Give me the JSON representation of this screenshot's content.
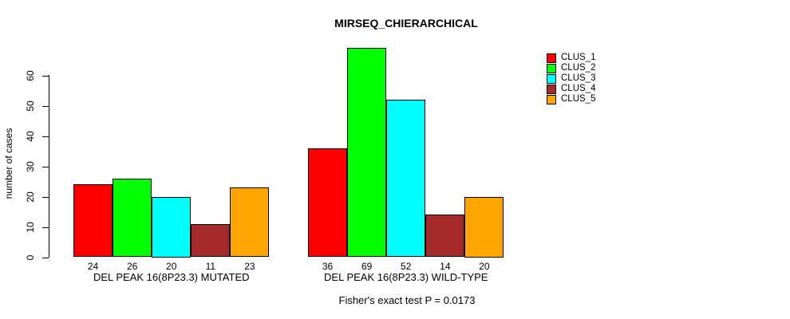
{
  "chart_data": {
    "type": "bar",
    "title": "MIRSEQ_CHIERARCHICAL",
    "ylabel": "number of cases",
    "xlabel": "",
    "footer": "Fisher's exact test P = 0.0173",
    "categories": [
      "DEL PEAK 16(8P23.3) MUTATED",
      "DEL PEAK 16(8P23.3) WILD-TYPE"
    ],
    "series": [
      {
        "name": "CLUS_1",
        "color": "#FF0000",
        "values": [
          24,
          36
        ]
      },
      {
        "name": "CLUS_2",
        "color": "#00FF00",
        "values": [
          26,
          69
        ]
      },
      {
        "name": "CLUS_3",
        "color": "#00FFFF",
        "values": [
          20,
          52
        ]
      },
      {
        "name": "CLUS_4",
        "color": "#A52A2A",
        "values": [
          11,
          14
        ]
      },
      {
        "name": "CLUS_5",
        "color": "#FFA500",
        "values": [
          23,
          20
        ]
      }
    ],
    "bar_value_labels": {
      "DEL PEAK 16(8P23.3) MUTATED": [
        24,
        26,
        20,
        11,
        23
      ],
      "DEL PEAK 16(8P23.3) WILD-TYPE": [
        36,
        69,
        52,
        14,
        20
      ]
    },
    "yticks": [
      0,
      10,
      20,
      30,
      40,
      50,
      60
    ],
    "ylim": [
      0,
      69
    ],
    "grid": false,
    "legend_position": "top-right",
    "legend_border": false,
    "axis_color": "#000000",
    "background_color": "#FFFFFF"
  }
}
